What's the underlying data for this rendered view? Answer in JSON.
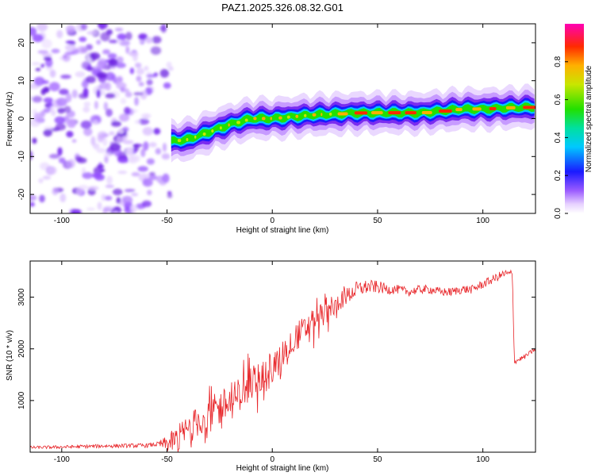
{
  "chart_data": [
    {
      "type": "heatmap",
      "title": "PAZ1.2025.326.08.32.G01",
      "xlabel": "Height of straight line (km)",
      "ylabel": "Frequency (Hz)",
      "xlim": [
        -115,
        125
      ],
      "ylim": [
        -25,
        25
      ],
      "xticks": [
        -100,
        -50,
        0,
        50,
        100
      ],
      "yticks": [
        -20,
        -10,
        0,
        10,
        20
      ],
      "colorbar": {
        "label": "Normalized spectral amplitude",
        "range": [
          0.0,
          1.0
        ],
        "ticks": [
          0.0,
          0.2,
          0.4,
          0.6,
          0.8
        ]
      },
      "ridge": {
        "x": [
          -48,
          -40,
          -30,
          -20,
          -10,
          0,
          10,
          20,
          30,
          40,
          50,
          60,
          70,
          80,
          90,
          100,
          110,
          125
        ],
        "frequency": [
          -6,
          -5.5,
          -3.5,
          -1.5,
          0,
          0,
          0.5,
          1,
          1.2,
          1.5,
          1.5,
          1.5,
          1.5,
          2,
          2.5,
          2.5,
          2.8,
          3
        ]
      }
    },
    {
      "type": "line",
      "xlabel": "Height of straight line (km)",
      "ylabel": "SNR (10 * v/v)",
      "xlim": [
        -115,
        125
      ],
      "ylim": [
        0,
        3700
      ],
      "xticks": [
        -100,
        -50,
        0,
        50,
        100
      ],
      "yticks": [
        1000,
        2000,
        3000
      ],
      "color": "#e8262a",
      "envelope": {
        "x": [
          -115,
          -100,
          -80,
          -60,
          -55,
          -50,
          -45,
          -40,
          -35,
          -30,
          -25,
          -20,
          -15,
          -10,
          -5,
          0,
          5,
          10,
          15,
          20,
          25,
          30,
          35,
          40,
          45,
          50,
          55,
          60,
          65,
          70,
          75,
          80,
          85,
          90,
          95,
          100,
          105,
          110,
          114,
          115,
          120,
          125
        ],
        "values": [
          90,
          100,
          120,
          130,
          150,
          160,
          250,
          450,
          600,
          750,
          850,
          950,
          1150,
          1350,
          1500,
          1600,
          1900,
          2200,
          2350,
          2550,
          2700,
          2900,
          3000,
          3150,
          3200,
          3200,
          3150,
          3150,
          3100,
          3150,
          3150,
          3100,
          3100,
          3150,
          3150,
          3250,
          3350,
          3450,
          3450,
          1750,
          1850,
          2000
        ]
      },
      "noise": {
        "x": [
          -115,
          -55,
          -45,
          -20,
          0,
          20,
          35,
          60,
          114,
          115,
          125
        ],
        "amplitude": [
          40,
          60,
          400,
          500,
          450,
          380,
          250,
          120,
          120,
          70,
          60
        ]
      }
    }
  ]
}
